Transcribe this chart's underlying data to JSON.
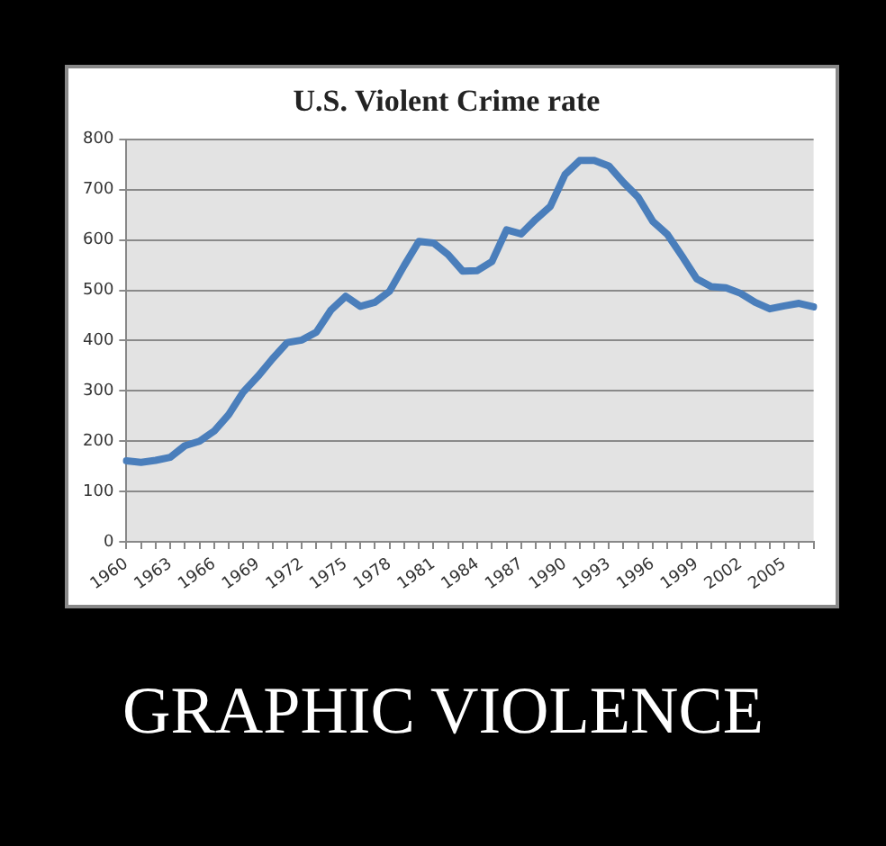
{
  "chart_data": {
    "type": "line",
    "title": "U.S. Violent Crime rate",
    "categories": [
      "1960",
      null,
      null,
      "1963",
      null,
      null,
      "1966",
      null,
      null,
      "1969",
      null,
      null,
      "1972",
      null,
      null,
      "1975",
      null,
      null,
      "1978",
      null,
      null,
      "1981",
      null,
      null,
      "1984",
      null,
      null,
      "1987",
      null,
      null,
      "1990",
      null,
      null,
      "1993",
      null,
      null,
      "1996",
      null,
      null,
      "1999",
      null,
      null,
      "2002",
      null,
      null,
      "2005",
      null,
      null
    ],
    "series": [
      {
        "color": "#4a7ebb",
        "values": [
          161,
          158,
          162,
          168,
          191,
          200,
          220,
          253,
          298,
          329,
          364,
          396,
          401,
          417,
          461,
          488,
          468,
          476,
          498,
          549,
          597,
          594,
          571,
          538,
          539,
          557,
          620,
          612,
          641,
          667,
          730,
          758,
          758,
          747,
          714,
          685,
          637,
          611,
          568,
          523,
          507,
          505,
          494,
          476,
          463,
          469,
          474,
          467
        ]
      }
    ],
    "ylim": [
      0,
      800
    ],
    "yticks": [
      0,
      100,
      200,
      300,
      400,
      500,
      600,
      700,
      800
    ],
    "grid": "y",
    "marker": "none",
    "line_style": "solid",
    "annotations": [
      "GRAPHIC VIOLENCE"
    ]
  }
}
